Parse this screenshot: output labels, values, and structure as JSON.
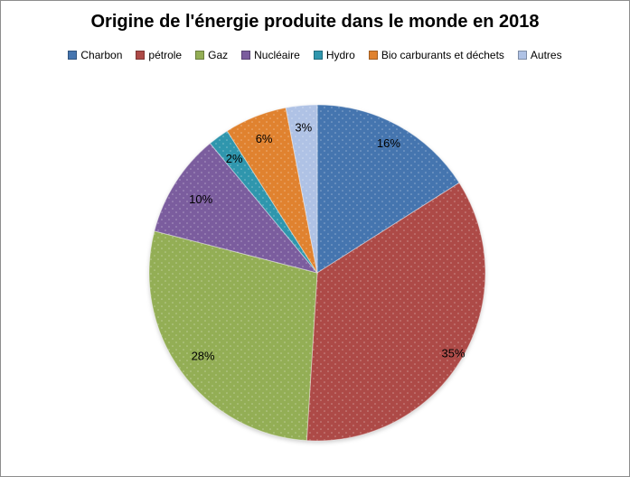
{
  "title": "Origine de l'énergie produite dans le monde en 2018",
  "frame": {
    "border_color": "#8d8d8d",
    "background": "#ffffff"
  },
  "chart_data": {
    "type": "pie",
    "title": "Origine de l'énergie produite dans le monde en 2018",
    "categories": [
      "Charbon",
      "pétrole",
      "Gaz",
      "Nucléaire",
      "Hydro",
      "Bio carburants et déchets",
      "Autres"
    ],
    "values": [
      16,
      35,
      28,
      10,
      2,
      6,
      3
    ],
    "unit": "%",
    "labels": [
      "16%",
      "35%",
      "28%",
      "10%",
      "2%",
      "6%",
      "3%"
    ],
    "colors": [
      "#4575AF",
      "#AD4A47",
      "#93AE55",
      "#7B5D9E",
      "#2F96AD",
      "#E0822F",
      "#AFC2E5"
    ],
    "start_angle_deg": 0,
    "direction": "clockwise",
    "legend_position": "top",
    "label_radius": [
      0.88,
      0.94,
      0.84,
      0.82,
      0.84,
      0.86,
      0.87
    ],
    "label_color": "#000000",
    "texture": "light-dots"
  }
}
